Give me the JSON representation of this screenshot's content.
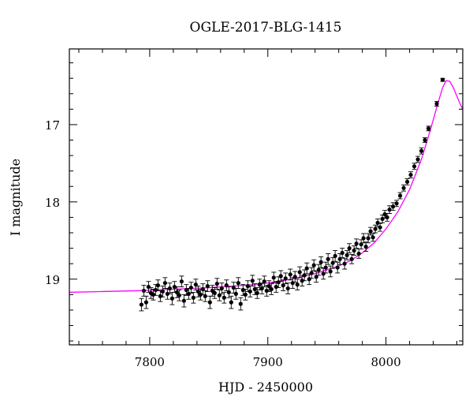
{
  "chart_data": {
    "type": "scatter",
    "title": "OGLE-2017-BLG-1415",
    "xlabel": "HJD - 2450000",
    "ylabel": "I magnitude",
    "xlim": [
      7732,
      8065
    ],
    "ylim": [
      19.85,
      16.02
    ],
    "y_inverted": true,
    "grid": false,
    "x_ticks": [
      7800,
      7900,
      8000
    ],
    "y_ticks": [
      17,
      18,
      19
    ],
    "x_minor_step": 20,
    "y_minor_step": 0.2,
    "colors": {
      "data": "#000000",
      "model": "#ff00ff"
    },
    "series": [
      {
        "kind": "observations",
        "color": "#000000",
        "points": [
          [
            7793,
            19.33,
            0.08
          ],
          [
            7795,
            19.15,
            0.07
          ],
          [
            7797,
            19.3,
            0.08
          ],
          [
            7799,
            19.1,
            0.07
          ],
          [
            7801,
            19.18,
            0.07
          ],
          [
            7803,
            19.2,
            0.07
          ],
          [
            7805,
            19.14,
            0.07
          ],
          [
            7807,
            19.08,
            0.07
          ],
          [
            7809,
            19.22,
            0.07
          ],
          [
            7811,
            19.16,
            0.07
          ],
          [
            7813,
            19.05,
            0.07
          ],
          [
            7815,
            19.19,
            0.07
          ],
          [
            7817,
            19.12,
            0.07
          ],
          [
            7819,
            19.25,
            0.08
          ],
          [
            7821,
            19.1,
            0.07
          ],
          [
            7823,
            19.17,
            0.07
          ],
          [
            7825,
            19.21,
            0.07
          ],
          [
            7827,
            19.03,
            0.07
          ],
          [
            7829,
            19.28,
            0.08
          ],
          [
            7831,
            19.14,
            0.07
          ],
          [
            7833,
            19.19,
            0.07
          ],
          [
            7835,
            19.11,
            0.07
          ],
          [
            7837,
            19.24,
            0.07
          ],
          [
            7839,
            19.07,
            0.07
          ],
          [
            7841,
            19.16,
            0.07
          ],
          [
            7843,
            19.2,
            0.07
          ],
          [
            7845,
            19.13,
            0.07
          ],
          [
            7847,
            19.22,
            0.07
          ],
          [
            7849,
            19.09,
            0.07
          ],
          [
            7851,
            19.3,
            0.08
          ],
          [
            7853,
            19.15,
            0.07
          ],
          [
            7855,
            19.18,
            0.07
          ],
          [
            7857,
            19.06,
            0.07
          ],
          [
            7859,
            19.21,
            0.07
          ],
          [
            7861,
            19.12,
            0.07
          ],
          [
            7863,
            19.24,
            0.07
          ],
          [
            7865,
            19.08,
            0.07
          ],
          [
            7867,
            19.17,
            0.07
          ],
          [
            7869,
            19.3,
            0.08
          ],
          [
            7871,
            19.11,
            0.07
          ],
          [
            7873,
            19.19,
            0.07
          ],
          [
            7875,
            19.05,
            0.07
          ],
          [
            7877,
            19.32,
            0.08
          ],
          [
            7879,
            19.14,
            0.07
          ],
          [
            7881,
            19.2,
            0.07
          ],
          [
            7883,
            19.09,
            0.07
          ],
          [
            7885,
            19.16,
            0.07
          ],
          [
            7887,
            19.02,
            0.07
          ],
          [
            7889,
            19.13,
            0.07
          ],
          [
            7891,
            19.18,
            0.07
          ],
          [
            7893,
            19.07,
            0.07
          ],
          [
            7895,
            19.12,
            0.07
          ],
          [
            7897,
            19.03,
            0.07
          ],
          [
            7899,
            19.15,
            0.07
          ],
          [
            7901,
            19.09,
            0.07
          ],
          [
            7903,
            19.13,
            0.07
          ],
          [
            7905,
            18.98,
            0.07
          ],
          [
            7907,
            19.1,
            0.07
          ],
          [
            7909,
            19.04,
            0.07
          ],
          [
            7911,
            18.96,
            0.07
          ],
          [
            7913,
            19.08,
            0.07
          ],
          [
            7915,
            18.99,
            0.07
          ],
          [
            7917,
            19.12,
            0.07
          ],
          [
            7919,
            18.94,
            0.07
          ],
          [
            7921,
            19.05,
            0.07
          ],
          [
            7923,
            18.97,
            0.07
          ],
          [
            7925,
            19.07,
            0.07
          ],
          [
            7927,
            18.91,
            0.07
          ],
          [
            7929,
            19.02,
            0.07
          ],
          [
            7931,
            18.95,
            0.07
          ],
          [
            7933,
            18.86,
            0.07
          ],
          [
            7935,
            19.0,
            0.07
          ],
          [
            7937,
            18.92,
            0.07
          ],
          [
            7939,
            18.82,
            0.07
          ],
          [
            7941,
            18.97,
            0.07
          ],
          [
            7943,
            18.88,
            0.07
          ],
          [
            7945,
            18.78,
            0.07
          ],
          [
            7947,
            18.93,
            0.07
          ],
          [
            7949,
            18.85,
            0.07
          ],
          [
            7951,
            18.74,
            0.07
          ],
          [
            7953,
            18.9,
            0.07
          ],
          [
            7955,
            18.79,
            0.07
          ],
          [
            7957,
            18.7,
            0.07
          ],
          [
            7959,
            18.85,
            0.07
          ],
          [
            7961,
            18.74,
            0.07
          ],
          [
            7963,
            18.66,
            0.06
          ],
          [
            7965,
            18.8,
            0.07
          ],
          [
            7967,
            18.69,
            0.06
          ],
          [
            7969,
            18.6,
            0.06
          ],
          [
            7971,
            18.74,
            0.06
          ],
          [
            7973,
            18.63,
            0.06
          ],
          [
            7975,
            18.54,
            0.06
          ],
          [
            7977,
            18.67,
            0.06
          ],
          [
            7979,
            18.55,
            0.06
          ],
          [
            7981,
            18.47,
            0.06
          ],
          [
            7983,
            18.58,
            0.06
          ],
          [
            7985,
            18.47,
            0.06
          ],
          [
            7987,
            18.38,
            0.05
          ],
          [
            7989,
            18.46,
            0.05
          ],
          [
            7991,
            18.35,
            0.05
          ],
          [
            7993,
            18.27,
            0.05
          ],
          [
            7995,
            18.33,
            0.05
          ],
          [
            7997,
            18.22,
            0.05
          ],
          [
            7999,
            18.16,
            0.05
          ],
          [
            8001,
            18.2,
            0.05
          ],
          [
            8003,
            18.1,
            0.05
          ],
          [
            8006,
            18.06,
            0.05
          ],
          [
            8009,
            18.02,
            0.04
          ],
          [
            8012,
            17.92,
            0.04
          ],
          [
            8015,
            17.82,
            0.04
          ],
          [
            8018,
            17.74,
            0.04
          ],
          [
            8021,
            17.65,
            0.04
          ],
          [
            8024,
            17.54,
            0.04
          ],
          [
            8027,
            17.45,
            0.04
          ],
          [
            8030,
            17.34,
            0.04
          ],
          [
            8033,
            17.2,
            0.03
          ],
          [
            8036,
            17.05,
            0.03
          ],
          [
            8043,
            16.73,
            0.03
          ],
          [
            8048,
            16.42,
            0.02
          ]
        ]
      },
      {
        "kind": "model",
        "color": "#ff00ff",
        "points": [
          [
            7732,
            19.17
          ],
          [
            7760,
            19.16
          ],
          [
            7790,
            19.15
          ],
          [
            7820,
            19.13
          ],
          [
            7850,
            19.11
          ],
          [
            7880,
            19.08
          ],
          [
            7900,
            19.05
          ],
          [
            7920,
            19.0
          ],
          [
            7940,
            18.93
          ],
          [
            7960,
            18.83
          ],
          [
            7970,
            18.76
          ],
          [
            7980,
            18.66
          ],
          [
            7990,
            18.53
          ],
          [
            8000,
            18.35
          ],
          [
            8010,
            18.13
          ],
          [
            8020,
            17.84
          ],
          [
            8030,
            17.45
          ],
          [
            8036,
            17.15
          ],
          [
            8040,
            16.94
          ],
          [
            8044,
            16.72
          ],
          [
            8048,
            16.52
          ],
          [
            8051,
            16.43
          ],
          [
            8054,
            16.44
          ],
          [
            8057,
            16.52
          ],
          [
            8060,
            16.63
          ],
          [
            8063,
            16.74
          ],
          [
            8065,
            16.8
          ]
        ]
      }
    ]
  }
}
